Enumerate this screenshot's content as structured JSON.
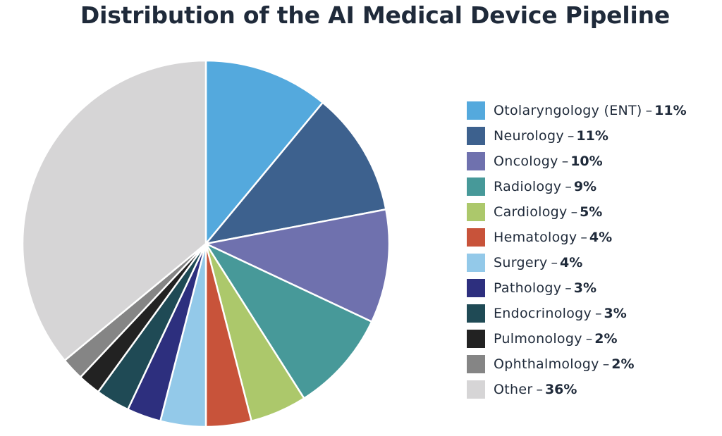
{
  "chart_data": {
    "type": "pie",
    "title": "Distribution of the AI Medical Device Pipeline",
    "legend_position": "right",
    "slices": [
      {
        "label": "Otolaryngology (ENT)",
        "value": 11,
        "value_label": "11%",
        "color": "#54a9dd"
      },
      {
        "label": "Neurology",
        "value": 11,
        "value_label": "11%",
        "color": "#3d618e"
      },
      {
        "label": "Oncology",
        "value": 10,
        "value_label": "10%",
        "color": "#6f71ae"
      },
      {
        "label": "Radiology",
        "value": 9,
        "value_label": "9%",
        "color": "#479999"
      },
      {
        "label": "Cardiology",
        "value": 5,
        "value_label": "5%",
        "color": "#acc86b"
      },
      {
        "label": "Hematology",
        "value": 4,
        "value_label": "4%",
        "color": "#c8533a"
      },
      {
        "label": "Surgery",
        "value": 4,
        "value_label": "4%",
        "color": "#93c9e9"
      },
      {
        "label": "Pathology",
        "value": 3,
        "value_label": "3%",
        "color": "#2d2f7e"
      },
      {
        "label": "Endocrinology",
        "value": 3,
        "value_label": "3%",
        "color": "#1f4a55"
      },
      {
        "label": "Pulmonology",
        "value": 2,
        "value_label": "2%",
        "color": "#222222"
      },
      {
        "label": "Ophthalmology",
        "value": 2,
        "value_label": "2%",
        "color": "#858585"
      },
      {
        "label": "Other",
        "value": 36,
        "value_label": "36%",
        "color": "#d6d5d6"
      }
    ]
  }
}
